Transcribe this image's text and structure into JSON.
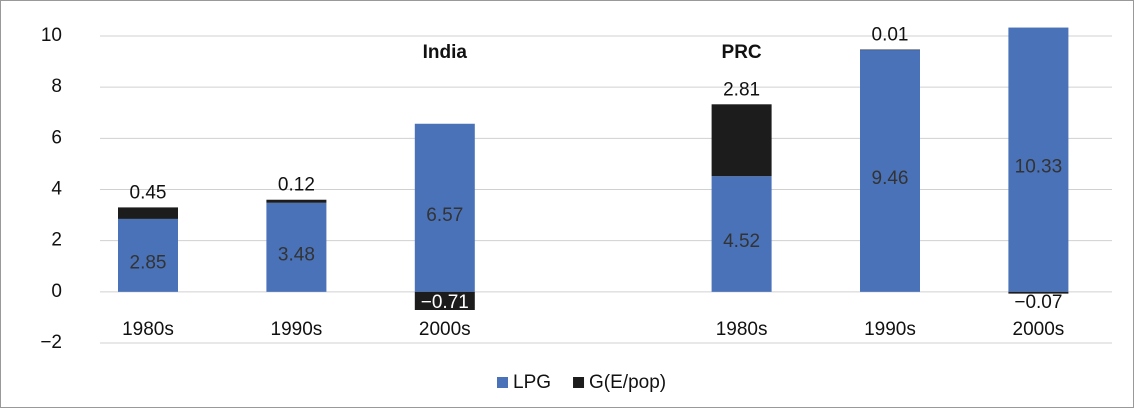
{
  "chart_data": {
    "type": "stacked-bar",
    "annotations": [
      "India",
      "PRC"
    ],
    "categories": [
      "1980s",
      "1990s",
      "2000s",
      "1980s",
      "1990s",
      "2000s"
    ],
    "series": [
      {
        "name": "LPG",
        "color": "#4a72b8",
        "values": [
          2.85,
          3.48,
          6.57,
          4.52,
          9.46,
          10.33
        ]
      },
      {
        "name": "G(E/pop)",
        "color": "#1c1c1c",
        "values": [
          0.45,
          0.12,
          -0.71,
          2.81,
          0.01,
          -0.07
        ],
        "value_labels": [
          "0.45",
          "0.12",
          "−0.71",
          "2.81",
          "0.01",
          "−0.07"
        ]
      }
    ],
    "ylim": [
      -2,
      10
    ],
    "yticks": [
      {
        "value": -2,
        "label": "−2"
      },
      0,
      2,
      4,
      6,
      8,
      10
    ],
    "grid": true
  }
}
